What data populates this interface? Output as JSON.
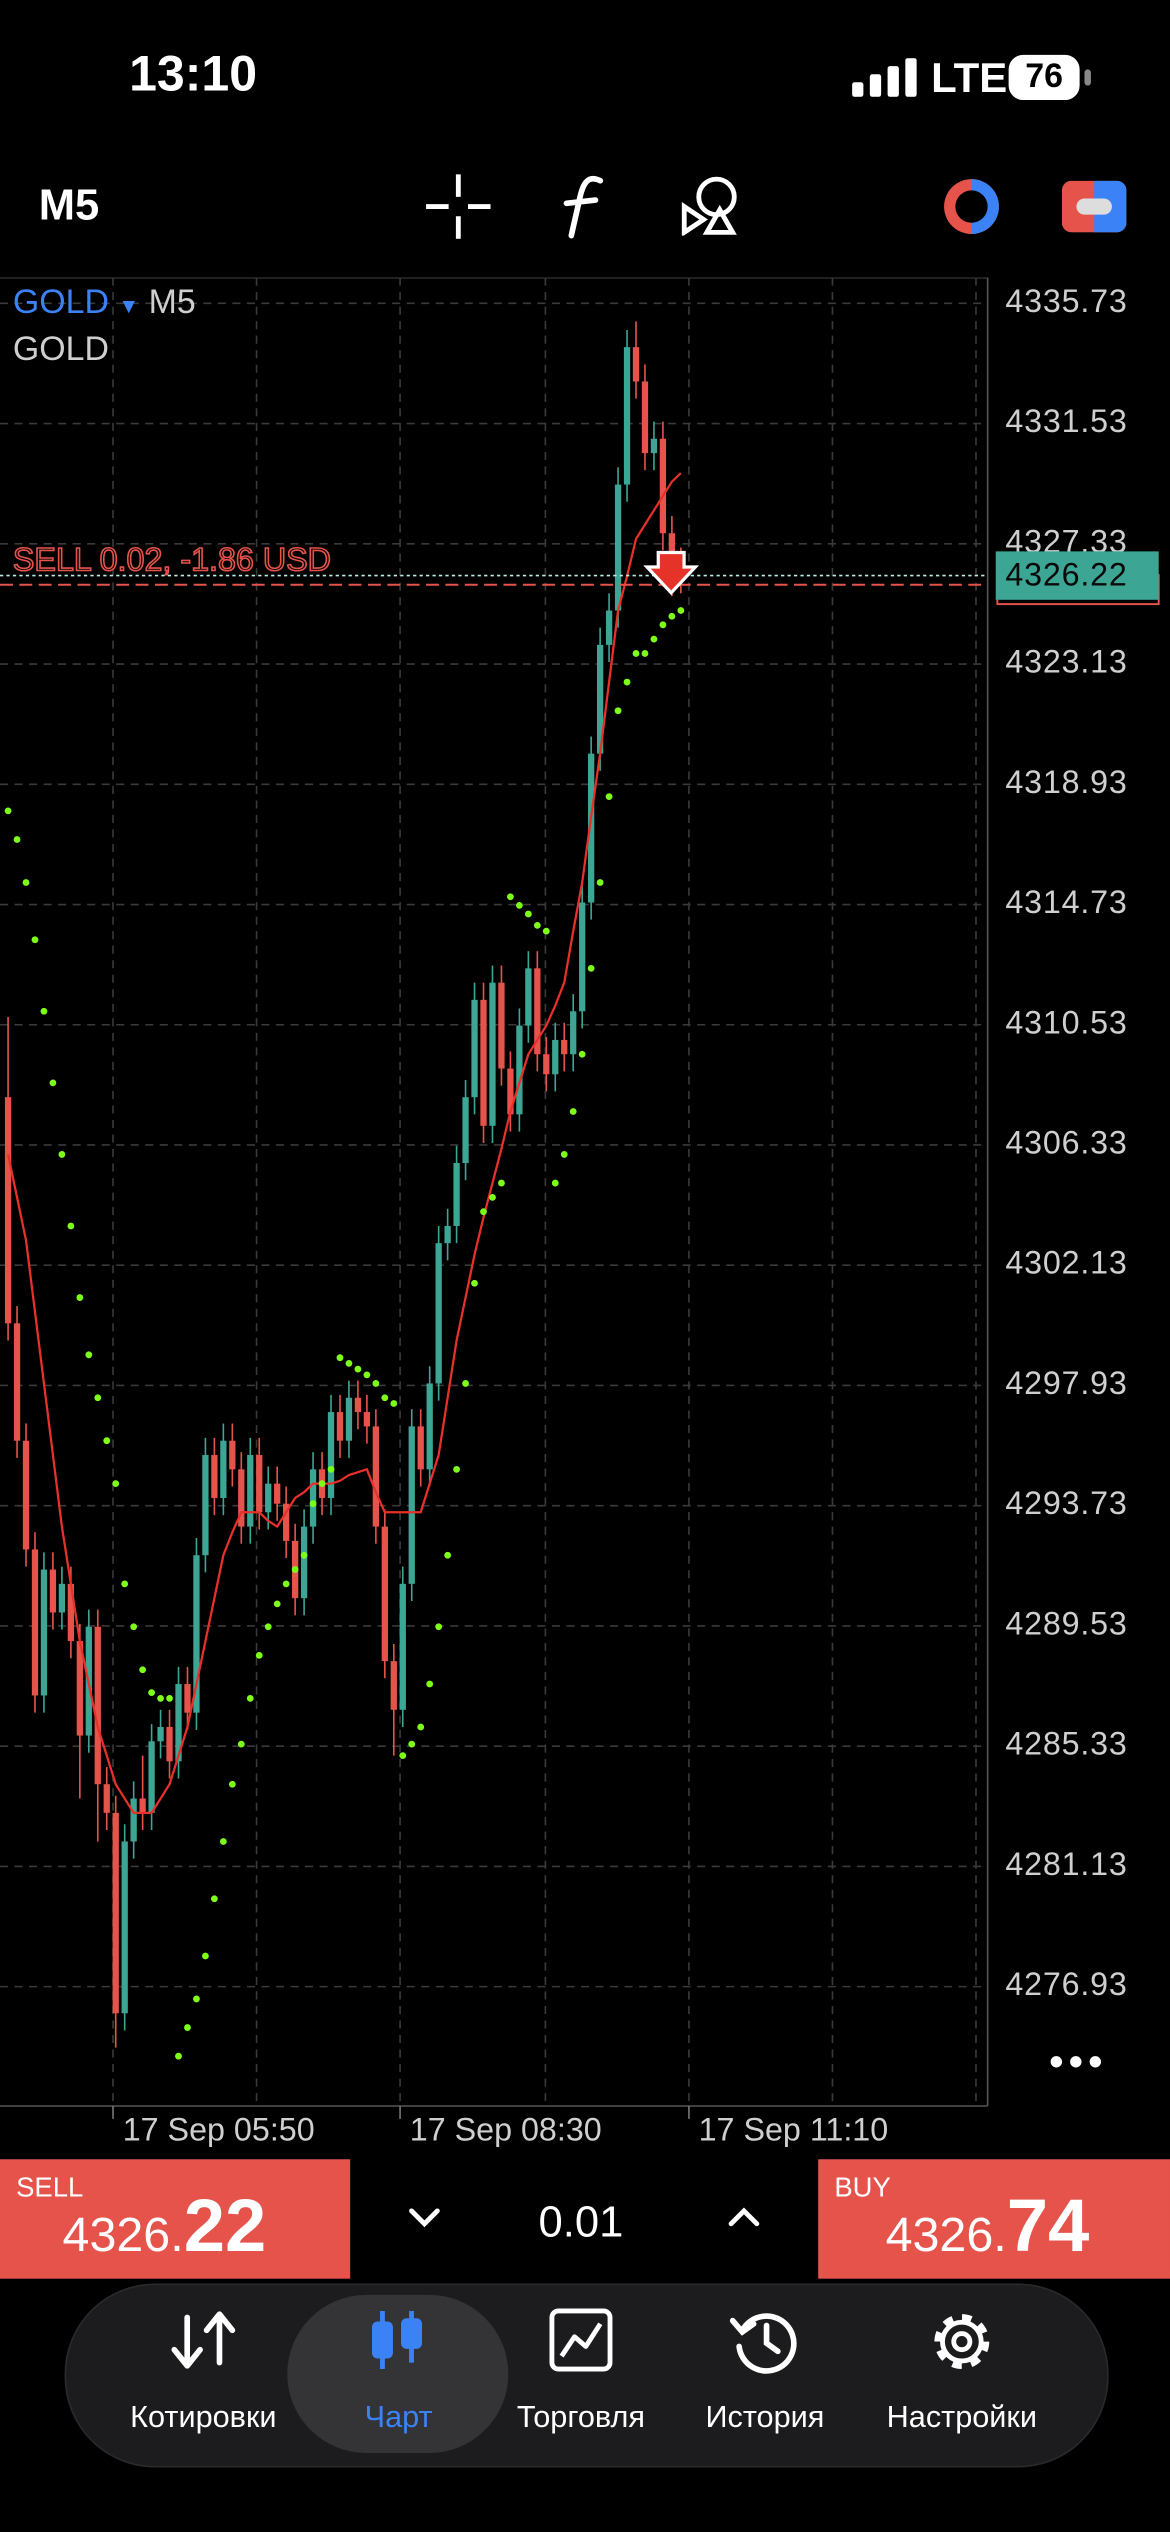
{
  "status_bar": {
    "time": "13:10",
    "network": "LTE",
    "battery": "76"
  },
  "toolbar": {
    "timeframe": "M5"
  },
  "chart_data": {
    "type": "candlestick",
    "symbol": "GOLD",
    "timeframe": "M5",
    "description": "GOLD",
    "x": [
      0,
      1,
      2,
      3,
      4,
      5,
      6,
      7,
      8,
      9,
      10,
      11,
      12,
      13,
      14,
      15,
      16,
      17,
      18,
      19,
      20,
      21,
      22,
      23,
      24,
      25,
      26,
      27,
      28,
      29,
      30,
      31,
      32,
      33,
      34,
      35,
      36,
      37,
      38,
      39,
      40,
      41,
      42,
      43,
      44,
      45,
      46,
      47,
      48,
      49,
      50,
      51,
      52,
      53,
      54,
      55,
      56,
      57,
      58,
      59,
      60,
      61,
      62,
      63,
      64,
      65,
      66,
      67,
      68,
      69,
      70,
      71,
      72,
      73,
      74,
      75
    ],
    "open": [
      4308.0,
      4300.1,
      4296.0,
      4292.2,
      4287.1,
      4291.5,
      4290.0,
      4291.0,
      4289.0,
      4285.7,
      4289.5,
      4284.0,
      4283.0,
      4276.0,
      4282.0,
      4283.5,
      4283.0,
      4285.5,
      4286.0,
      4284.8,
      4287.5,
      4286.5,
      4292.0,
      4295.5,
      4294.0,
      4296.0,
      4295.0,
      4293.0,
      4295.5,
      4293.5,
      4294.5,
      4293.8,
      4292.5,
      4290.5,
      4293.0,
      4295.0,
      4294.0,
      4297.0,
      4296.0,
      4297.5,
      4297.0,
      4296.5,
      4293.0,
      4288.3,
      4286.6,
      4291.0,
      4296.5,
      4295.0,
      4298.0,
      4302.9,
      4303.5,
      4305.7,
      4308.0,
      4311.4,
      4307.0,
      4312.0,
      4309.0,
      4307.4,
      4310.5,
      4312.5,
      4309.5,
      4308.8,
      4310.0,
      4309.5,
      4311.0,
      4314.8,
      4320.0,
      4323.8,
      4325.0,
      4329.4,
      4334.2,
      4333.0,
      4330.5,
      4331.0,
      4327.7,
      4326.6
    ],
    "high": [
      4310.8,
      4300.7,
      4296.6,
      4292.8,
      4292.1,
      4292.1,
      4291.6,
      4291.6,
      4289.6,
      4290.1,
      4290.1,
      4284.6,
      4283.6,
      4282.6,
      4284.1,
      4285.0,
      4286.1,
      4286.6,
      4286.6,
      4288.1,
      4288.1,
      4292.6,
      4296.1,
      4296.1,
      4296.6,
      4296.6,
      4295.6,
      4296.1,
      4296.1,
      4295.1,
      4295.1,
      4294.4,
      4293.1,
      4293.6,
      4295.6,
      4295.6,
      4297.6,
      4297.6,
      4298.1,
      4298.1,
      4297.6,
      4297.1,
      4293.6,
      4288.9,
      4291.6,
      4297.1,
      4297.1,
      4298.6,
      4303.5,
      4304.1,
      4306.3,
      4308.6,
      4312.0,
      4312.0,
      4312.6,
      4312.6,
      4309.6,
      4311.1,
      4313.1,
      4313.1,
      4310.1,
      4310.6,
      4310.6,
      4311.6,
      4315.4,
      4320.6,
      4324.4,
      4325.6,
      4330.0,
      4334.8,
      4335.1,
      4333.6,
      4331.6,
      4331.6,
      4328.3,
      4327.2
    ],
    "low": [
      4299.5,
      4295.4,
      4291.6,
      4286.5,
      4286.5,
      4289.4,
      4289.4,
      4288.4,
      4283.5,
      4285.1,
      4282.0,
      4282.4,
      4274.8,
      4275.4,
      4281.4,
      4282.4,
      4282.4,
      4284.9,
      4284.2,
      4284.2,
      4285.9,
      4285.9,
      4291.4,
      4293.4,
      4293.4,
      4294.4,
      4292.4,
      4292.4,
      4292.9,
      4292.9,
      4293.2,
      4291.9,
      4289.9,
      4289.9,
      4292.4,
      4293.4,
      4293.4,
      4295.4,
      4295.4,
      4296.4,
      4295.9,
      4292.4,
      4287.7,
      4285.0,
      4286.0,
      4290.4,
      4294.4,
      4294.4,
      4297.4,
      4302.3,
      4302.9,
      4305.1,
      4307.4,
      4306.4,
      4306.4,
      4308.4,
      4306.8,
      4306.8,
      4309.9,
      4308.9,
      4308.2,
      4308.2,
      4308.9,
      4308.9,
      4310.4,
      4314.2,
      4319.4,
      4323.2,
      4324.4,
      4328.8,
      4332.4,
      4329.9,
      4329.9,
      4327.1,
      4325.5,
      4325.6
    ],
    "close": [
      4300.1,
      4296.0,
      4292.2,
      4287.1,
      4291.5,
      4290.0,
      4291.0,
      4289.0,
      4285.7,
      4289.5,
      4284.0,
      4283.0,
      4276.0,
      4282.0,
      4283.5,
      4283.0,
      4285.5,
      4286.0,
      4284.8,
      4287.5,
      4286.5,
      4292.0,
      4295.5,
      4294.0,
      4296.0,
      4295.0,
      4293.0,
      4295.5,
      4293.5,
      4294.5,
      4293.8,
      4292.5,
      4290.5,
      4293.0,
      4295.0,
      4294.0,
      4297.0,
      4296.0,
      4297.5,
      4297.0,
      4296.5,
      4293.0,
      4288.3,
      4286.6,
      4291.0,
      4296.5,
      4295.0,
      4298.0,
      4302.9,
      4303.5,
      4305.7,
      4308.0,
      4311.4,
      4307.0,
      4312.0,
      4309.0,
      4307.4,
      4310.5,
      4312.5,
      4309.5,
      4308.8,
      4310.0,
      4309.5,
      4311.0,
      4314.8,
      4320.0,
      4323.8,
      4325.0,
      4329.4,
      4334.2,
      4333.0,
      4330.5,
      4331.0,
      4327.7,
      4326.6,
      4326.2
    ],
    "up_color": "#3da594",
    "down_color": "#e5534b",
    "series": [
      {
        "type": "line",
        "color": "#e8302a",
        "values": [
          4306,
          4304.5,
          4303,
          4300.5,
          4298,
          4295.5,
          4293,
          4291,
          4289,
          4287.5,
          4286,
          4285,
          4284,
          4283.5,
          4283,
          4283,
          4283,
          4283.5,
          4284,
          4285,
          4286,
          4287.5,
          4289,
          4290.5,
          4292,
          4292.8,
          4293.5,
          4293.5,
          4293.5,
          4293.2,
          4293,
          4293.5,
          4294,
          4294.2,
          4294.5,
          4294.5,
          4294.5,
          4294.6,
          4294.8,
          4294.9,
          4295,
          4294.2,
          4293.5,
          4293.5,
          4293.5,
          4293.5,
          4293.5,
          4294.5,
          4295.5,
          4297.5,
          4299.5,
          4301,
          4302.5,
          4303.8,
          4305,
          4306.2,
          4307.5,
          4308.5,
          4309.5,
          4310,
          4310.5,
          4311.2,
          4312,
          4313.8,
          4315.5,
          4317.8,
          4320,
          4322.5,
          4325,
          4326.2,
          4327.5,
          4328,
          4328.5,
          4329,
          4329.5,
          4329.8
        ]
      },
      {
        "type": "scatter",
        "color": "#7dff1a",
        "values": [
          4318.0,
          4317.0,
          4315.5,
          4313.5,
          4311.0,
          4308.5,
          4306.0,
          4303.5,
          4301.0,
          4299.0,
          4297.5,
          4296.0,
          4294.5,
          4291.0,
          4289.5,
          4288.0,
          4287.2,
          4287.0,
          4287.0,
          4274.5,
          4275.5,
          4276.5,
          4278.0,
          4280.0,
          4282.0,
          4284.0,
          4285.4,
          4287.0,
          4288.5,
          4289.5,
          4290.3,
          4291.0,
          4291.5,
          4292.0,
          4293.8,
          4294.5,
          4295.0,
          4298.9,
          4298.7,
          4298.5,
          4298.3,
          4298.0,
          4297.5,
          4297.3,
          4285.0,
          4285.4,
          4286.0,
          4287.5,
          4289.5,
          4292.0,
          4295.0,
          4298.0,
          4301.5,
          4304.0,
          4304.5,
          4305.0,
          4315.0,
          4314.7,
          4314.4,
          4314.0,
          4313.8,
          4305.0,
          4306.0,
          4307.5,
          4309.5,
          4312.5,
          4315.5,
          4318.5,
          4321.5,
          4322.5,
          4323.5,
          4323.5,
          4324.0,
          4324.5,
          4324.8,
          4325.0
        ]
      }
    ],
    "xlim": [
      -0.9,
      109.2
    ],
    "xticks": [
      {
        "value": 11.7,
        "label": "17 Sep 05:50"
      },
      {
        "value": 43.7,
        "label": "17 Sep 08:30"
      },
      {
        "value": 75.9,
        "label": "17 Sep 11:10"
      }
    ],
    "x_grid": [
      27.7,
      59.9,
      91.9,
      107.9
    ],
    "ylim": [
      4272.76,
      4336.63
    ],
    "yticks": [
      4335.73,
      4331.53,
      4327.33,
      4323.13,
      4318.93,
      4314.73,
      4310.53,
      4306.33,
      4302.13,
      4297.93,
      4293.73,
      4289.53,
      4285.33,
      4281.13,
      4276.93
    ],
    "grid": true,
    "current_price": 4326.22,
    "position": {
      "label": "SELL 0.02, -1.86 USD",
      "price": 4325.9
    }
  },
  "trade_panel": {
    "sell": {
      "label": "SELL",
      "price_head": "4326.",
      "price_tail": "22"
    },
    "volume": "0.01",
    "buy": {
      "label": "BUY",
      "price_head": "4326.",
      "price_tail": "74"
    }
  },
  "nav": [
    {
      "label": "Котировки"
    },
    {
      "label": "Чарт"
    },
    {
      "label": "Торговля"
    },
    {
      "label": "История"
    },
    {
      "label": "Настройки"
    }
  ]
}
